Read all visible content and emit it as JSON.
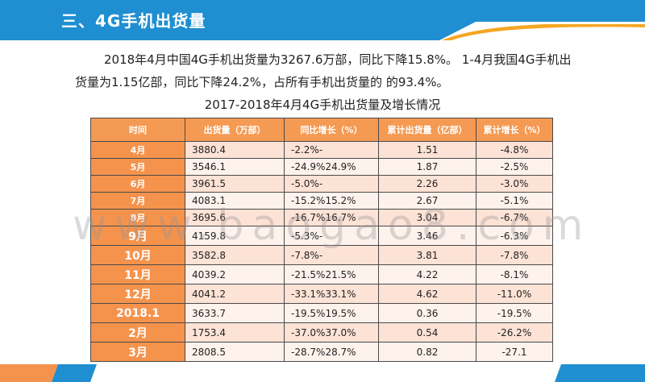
{
  "header": {
    "title": "三、4G手机出货量"
  },
  "intro": "2018年4月中国4G手机出货量为3267.6万部，同比下降15.8%。 1-4月我国4G手机出货量为1.15亿部，同比下降24.2%，占所有手机出货量的 的93.4%。",
  "table_title": "2017-2018年4月4G手机出货量及增长情况",
  "columns": [
    "时间",
    "出货量（万部）",
    "同比增长（%）",
    "累计出货量（亿部）",
    "累计增长（%）"
  ],
  "rows": [
    {
      "time": "4月",
      "shipment": "3880.4",
      "yoy": "-2.2%-",
      "cum": "1.51",
      "cum_growth": "-4.8%"
    },
    {
      "time": "5月",
      "shipment": "3546.1",
      "yoy": "-24.9%24.9%",
      "cum": "1.87",
      "cum_growth": "-2.5%"
    },
    {
      "time": "6月",
      "shipment": "3961.5",
      "yoy": "-5.0%-",
      "cum": "2.26",
      "cum_growth": "-3.0%"
    },
    {
      "time": "7月",
      "shipment": "4083.1",
      "yoy": "-15.2%15.2%",
      "cum": "2.67",
      "cum_growth": "-5.1%"
    },
    {
      "time": "8月",
      "shipment": "3695.6",
      "yoy": "-16.7%16.7%",
      "cum": "3.04",
      "cum_growth": "-6.7%"
    },
    {
      "time": "9月",
      "shipment": "4159.8",
      "yoy": "-5.3%-",
      "cum": "3.46",
      "cum_growth": "-6.3%"
    },
    {
      "time": "10月",
      "shipment": "3582.8",
      "yoy": "-7.8%-",
      "cum": "3.81",
      "cum_growth": "-7.8%"
    },
    {
      "time": "11月",
      "shipment": "4039.2",
      "yoy": "-21.5%21.5%",
      "cum": "4.22",
      "cum_growth": "-8.1%"
    },
    {
      "time": "12月",
      "shipment": "4041.2",
      "yoy": "-33.1%33.1%",
      "cum": "4.62",
      "cum_growth": "-11.0%"
    },
    {
      "time": "2018.1",
      "shipment": "3633.7",
      "yoy": "-19.5%19.5%",
      "cum": "0.36",
      "cum_growth": "-19.5%"
    },
    {
      "time": "2月",
      "shipment": "1753.4",
      "yoy": "-37.0%37.0%",
      "cum": "0.54",
      "cum_growth": "-26.2%"
    },
    {
      "time": "3月",
      "shipment": "2808.5",
      "yoy": "-28.7%28.7%",
      "cum": "0.82",
      "cum_growth": "-27.1"
    }
  ],
  "watermark": "www.baogao8.com",
  "colors": {
    "header_blue": "#1f8fd1",
    "accent_orange": "#f5934d",
    "row_odd": "#fde2d6",
    "row_even": "#fef2ec"
  }
}
